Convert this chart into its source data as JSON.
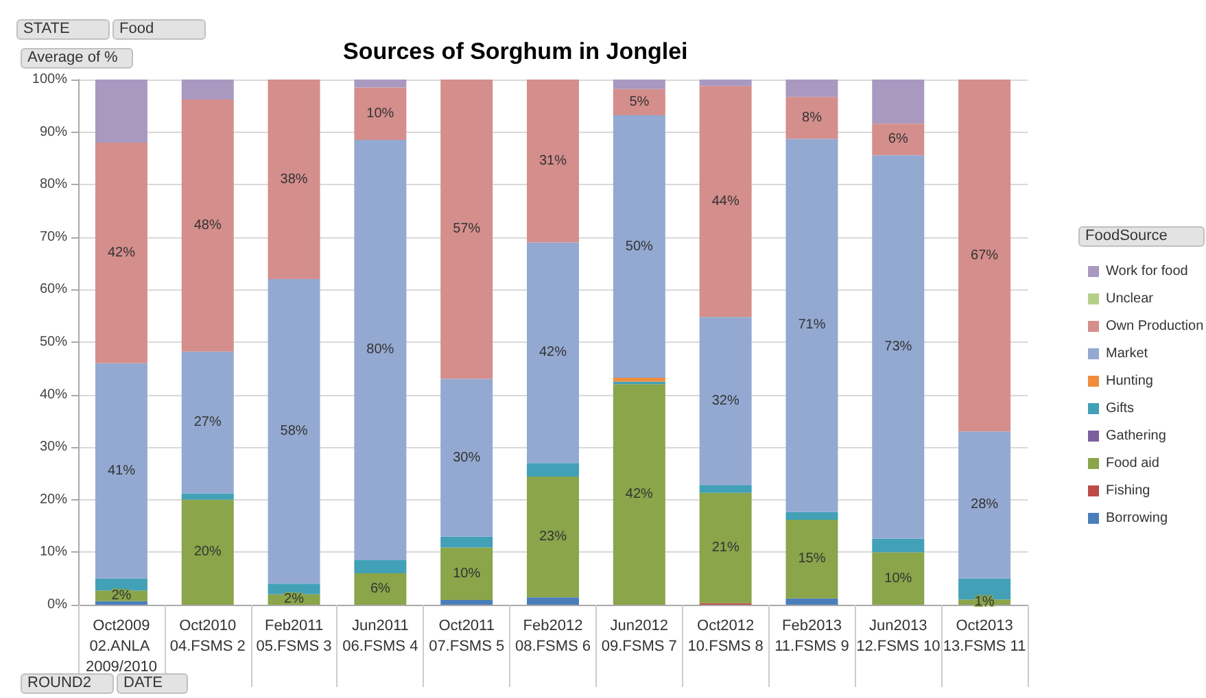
{
  "chart_data": {
    "type": "bar",
    "stacked": true,
    "title": "Sources of Sorghum in Jonglei",
    "legend_title": "FoodSource",
    "legend": "right",
    "grid": "y",
    "annotations": [
      "STATE",
      "Food",
      "Average of %",
      "ROUND2",
      "DATE"
    ],
    "categories": [
      "Oct2009\n02.ANLA 2009/2010",
      "Oct2010\n04.FSMS 2",
      "Feb2011\n05.FSMS 3",
      "Jun2011\n06.FSMS 4",
      "Oct2011\n07.FSMS 5",
      "Feb2012\n08.FSMS 6",
      "Jun2012\n09.FSMS 7",
      "Oct2012\n10.FSMS 8",
      "Feb2013\n11.FSMS 9",
      "Jun2013\n12.FSMS 10",
      "Oct2013\n13.FSMS 11"
    ],
    "ylim": [
      0,
      100
    ],
    "yticks": [
      {
        "value": 0,
        "label": "0%"
      },
      {
        "value": 10,
        "label": "10%"
      },
      {
        "value": 20,
        "label": "20%"
      },
      {
        "value": 30,
        "label": "30%"
      },
      {
        "value": 40,
        "label": "40%"
      },
      {
        "value": 50,
        "label": "50%"
      },
      {
        "value": 60,
        "label": "60%"
      },
      {
        "value": 70,
        "label": "70%"
      },
      {
        "value": 80,
        "label": "80%"
      },
      {
        "value": 90,
        "label": "90%"
      },
      {
        "value": 100,
        "label": "100%"
      }
    ],
    "series": [
      {
        "name": "Borrowing",
        "color": "#4a7ebb",
        "values": [
          0.7,
          0,
          0,
          0,
          0.9,
          1.4,
          0,
          0,
          1.2,
          0,
          0
        ]
      },
      {
        "name": "Fishing",
        "color": "#be4b48",
        "values": [
          0,
          0,
          0,
          0,
          0,
          0,
          0,
          0.3,
          0,
          0,
          0
        ]
      },
      {
        "name": "Food aid",
        "color": "#8aa54a",
        "values": [
          2,
          20,
          2,
          6,
          10,
          23,
          42,
          21,
          15,
          10,
          1
        ],
        "value_labels": [
          "2%",
          "20%",
          "2%",
          "6%",
          "10%",
          "23%",
          "42%",
          "21%",
          "15%",
          "10%",
          "1%"
        ]
      },
      {
        "name": "Gathering",
        "color": "#7d5fa0",
        "values": [
          0,
          0,
          0,
          0,
          0,
          0,
          0,
          0,
          0,
          0,
          0
        ]
      },
      {
        "name": "Gifts",
        "color": "#42a0b7",
        "values": [
          2.3,
          1.2,
          2,
          2.5,
          2.1,
          2.6,
          0.5,
          1.5,
          1.5,
          2.6,
          4
        ]
      },
      {
        "name": "Hunting",
        "color": "#f08c3c",
        "values": [
          0,
          0,
          0,
          0,
          0,
          0,
          0.7,
          0,
          0,
          0,
          0
        ]
      },
      {
        "name": "Market",
        "color": "#94a9d1",
        "values": [
          41,
          27,
          58,
          80,
          30,
          42,
          50,
          32,
          71,
          73,
          28
        ],
        "value_labels": [
          "41%",
          "27%",
          "58%",
          "80%",
          "30%",
          "42%",
          "50%",
          "32%",
          "71%",
          "73%",
          "28%"
        ]
      },
      {
        "name": "Own Production",
        "color": "#d48e8c",
        "values": [
          42,
          48,
          38,
          10,
          57,
          31,
          5,
          44,
          8,
          6,
          67
        ],
        "value_labels": [
          "42%",
          "48%",
          "38%",
          "10%",
          "57%",
          "31%",
          "5%",
          "44%",
          "8%",
          "6%",
          "67%"
        ]
      },
      {
        "name": "Unclear",
        "color": "#b5cf8a",
        "values": [
          0,
          0,
          0,
          0,
          0,
          0,
          0,
          0,
          0,
          0,
          0
        ]
      },
      {
        "name": "Work for food",
        "color": "#a999c1",
        "values": [
          12,
          3.8,
          0,
          1.5,
          0,
          0,
          1.8,
          1.2,
          3.3,
          8.4,
          0
        ]
      }
    ]
  }
}
